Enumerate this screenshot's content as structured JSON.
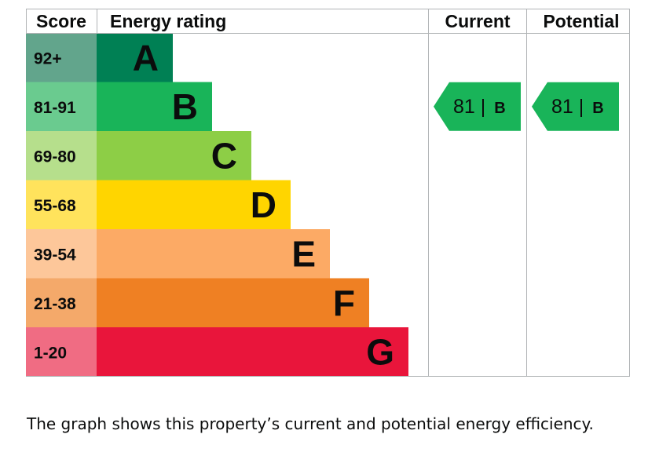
{
  "headers": {
    "score": "Score",
    "rating": "Energy rating",
    "current": "Current",
    "potential": "Potential"
  },
  "chart_data": {
    "type": "bar",
    "categories": [
      "A",
      "B",
      "C",
      "D",
      "E",
      "F",
      "G"
    ],
    "bands": [
      {
        "letter": "A",
        "score": "92+",
        "color": "#008054",
        "score_bg": "#62a58c"
      },
      {
        "letter": "B",
        "score": "81-91",
        "color": "#19b459",
        "score_bg": "#6acb8f"
      },
      {
        "letter": "C",
        "score": "69-80",
        "color": "#8dce46",
        "score_bg": "#b6df8c"
      },
      {
        "letter": "D",
        "score": "55-68",
        "color": "#ffd500",
        "score_bg": "#ffe35c"
      },
      {
        "letter": "E",
        "score": "39-54",
        "color": "#fcaa65",
        "score_bg": "#fdc79a"
      },
      {
        "letter": "F",
        "score": "21-38",
        "color": "#ef8023",
        "score_bg": "#f4a96a"
      },
      {
        "letter": "G",
        "score": "1-20",
        "color": "#e9153b",
        "score_bg": "#f06c83"
      }
    ],
    "current": {
      "value": 81,
      "band": "B",
      "label": "81 | ",
      "letter": "B",
      "color": "#19b459"
    },
    "potential": {
      "value": 81,
      "band": "B",
      "label": "81 | ",
      "letter": "B",
      "color": "#19b459"
    }
  },
  "caption": "The graph shows this property’s current and potential energy efficiency."
}
